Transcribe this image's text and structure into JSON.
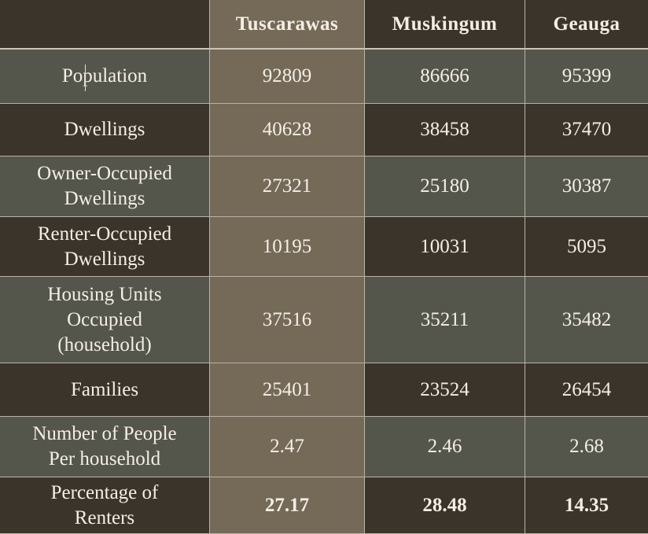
{
  "header": {
    "corner": "",
    "columns": [
      "Tuscarawas",
      "Muskingum",
      "Geauga"
    ]
  },
  "rows": [
    {
      "label": "Population",
      "values": [
        "92809",
        "86666",
        "95399"
      ]
    },
    {
      "label": "Dwellings",
      "values": [
        "40628",
        "38458",
        "37470"
      ]
    },
    {
      "label": "Owner-Occupied\nDwellings",
      "values": [
        "27321",
        "25180",
        "30387"
      ]
    },
    {
      "label": "Renter-Occupied\nDwellings",
      "values": [
        "10195",
        "10031",
        "5095"
      ]
    },
    {
      "label": "Housing Units\nOccupied\n(household)",
      "values": [
        "37516",
        "35211",
        "35482"
      ]
    },
    {
      "label": "Families",
      "values": [
        "25401",
        "23524",
        "26454"
      ]
    },
    {
      "label": "Number of People\nPer household",
      "values": [
        "2.47",
        "2.46",
        "2.68"
      ]
    },
    {
      "label": "Percentage of\nRenters",
      "values": [
        "27.17",
        "28.48",
        "14.35"
      ]
    }
  ],
  "style": {
    "highlight_column": "Tuscarawas",
    "bold_row": "Percentage of\nRenters",
    "colors": {
      "dark_band": "#3b342b",
      "light_band": "#55564b",
      "highlight_column": "#756a57",
      "text": "#f4efe6",
      "grid_line": "#b9b3a6"
    }
  }
}
